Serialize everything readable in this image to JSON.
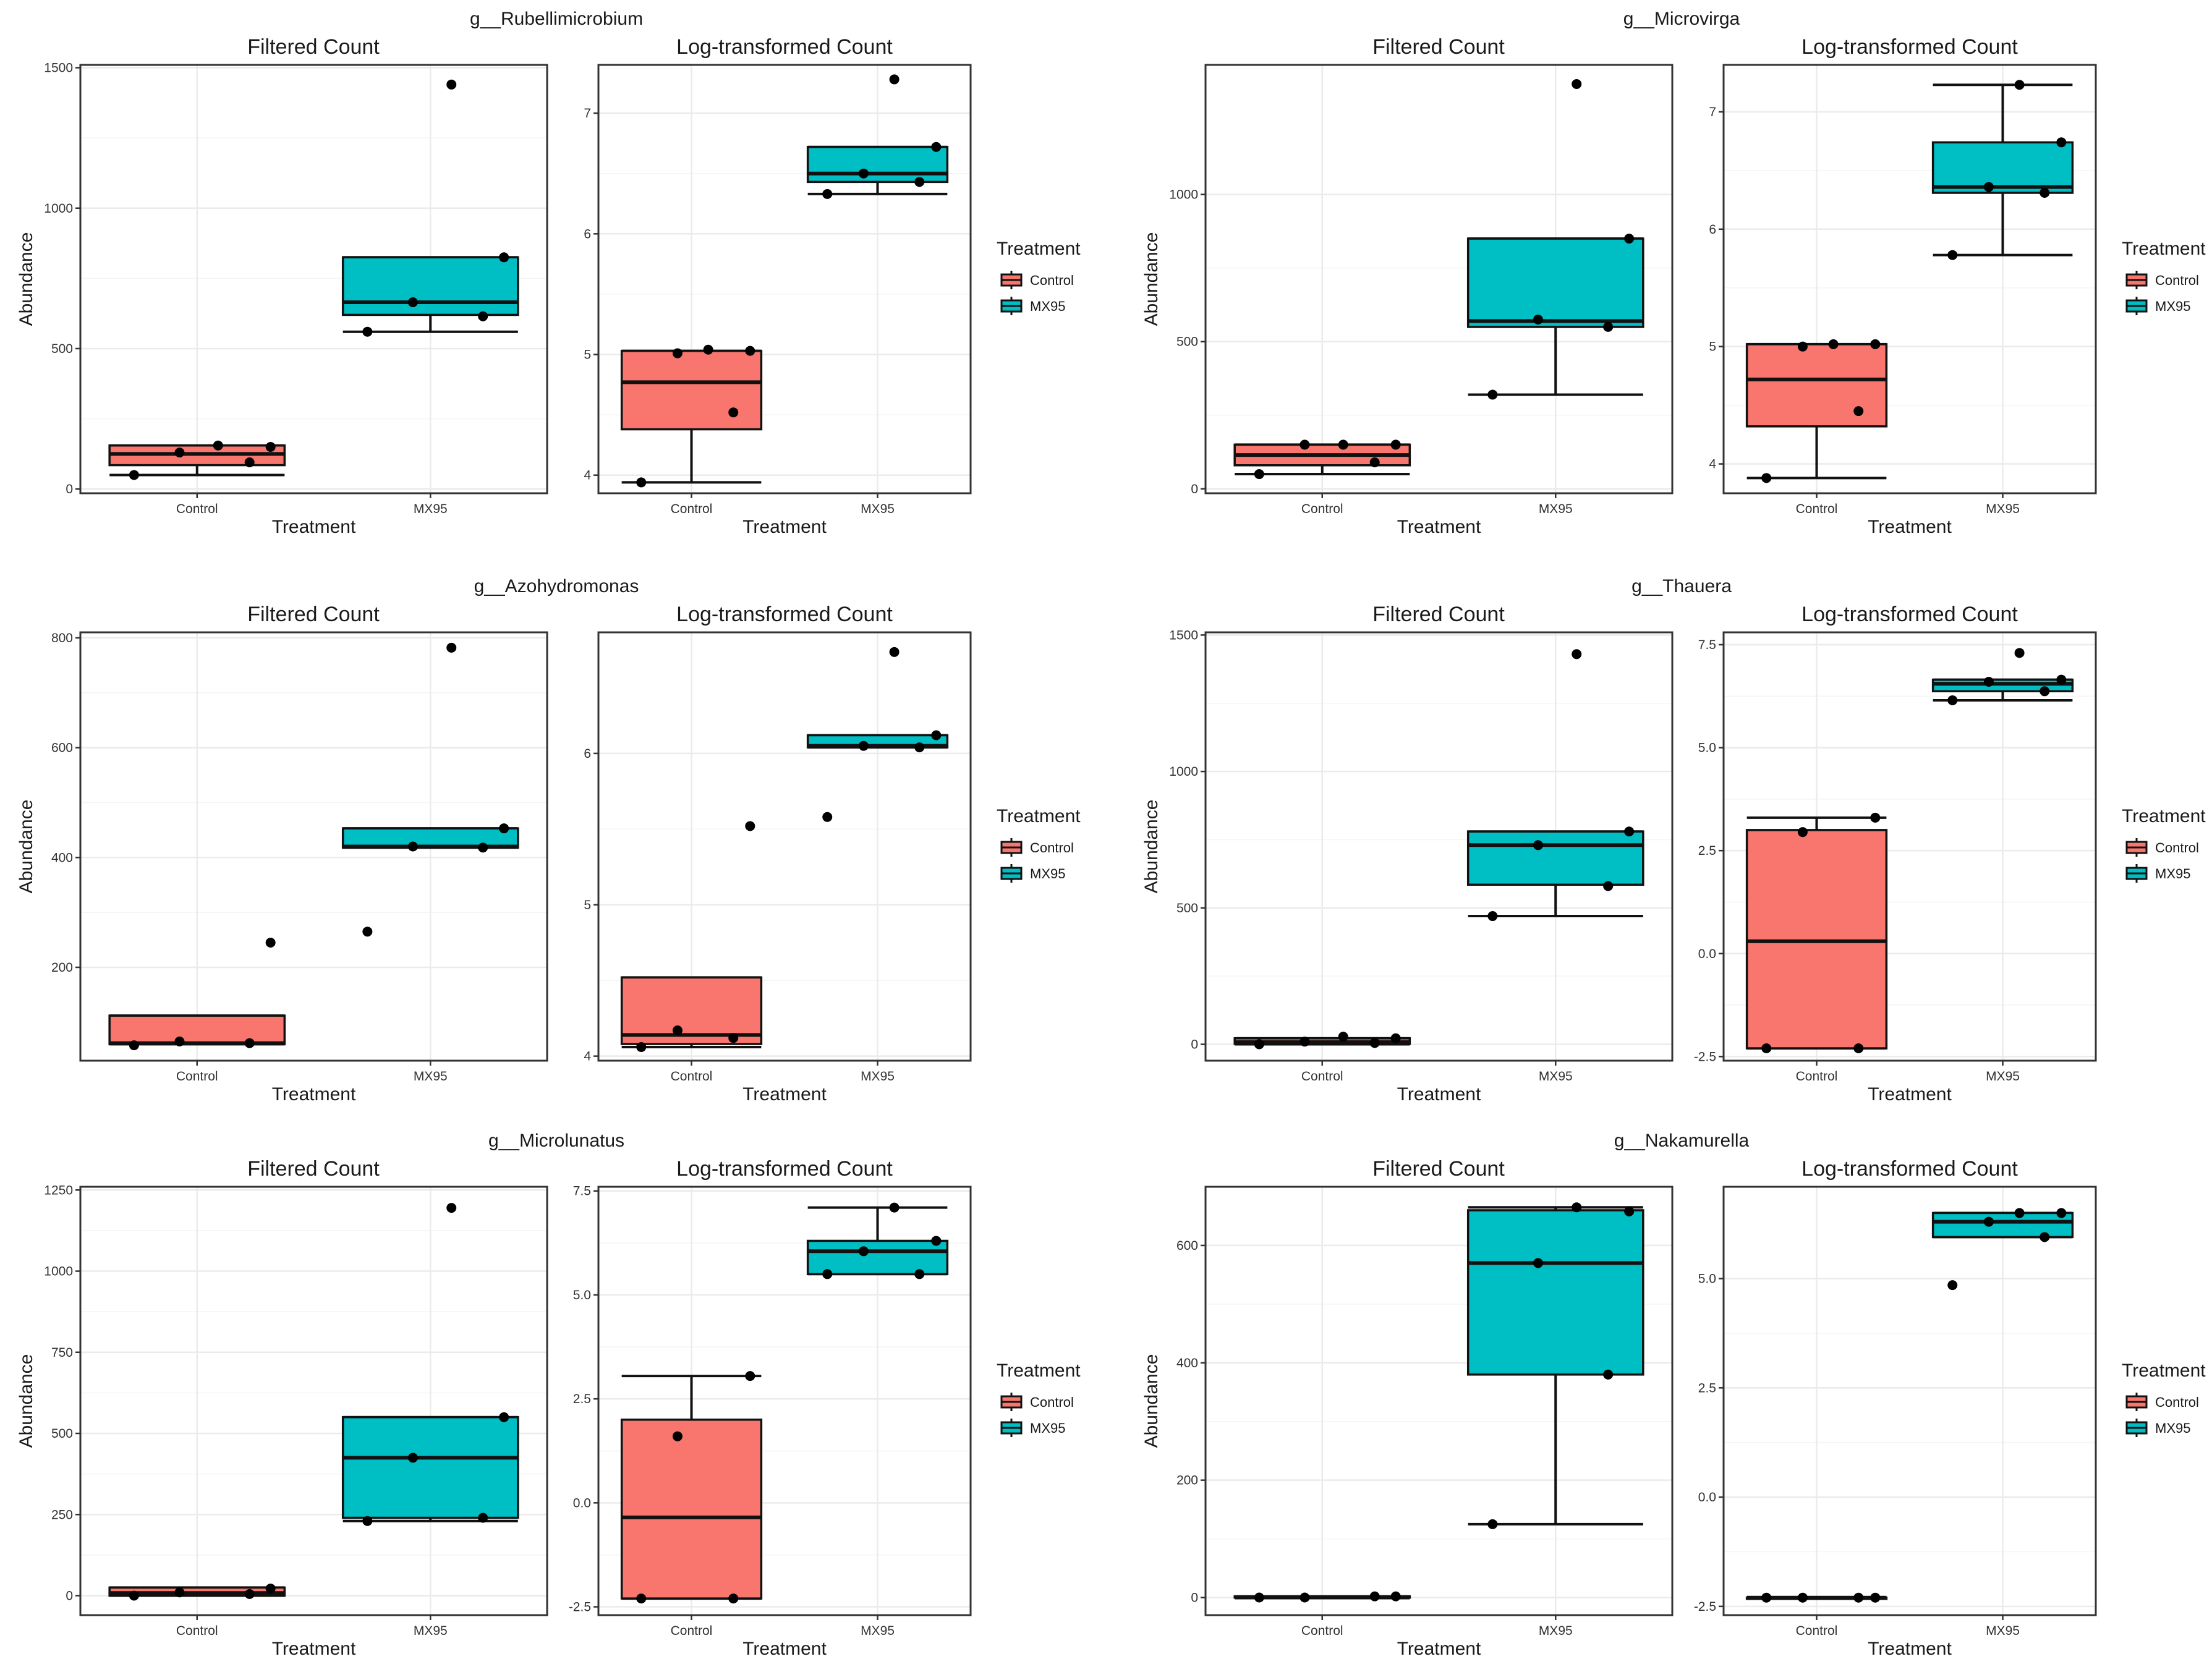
{
  "figure": {
    "background": "#ffffff"
  },
  "colors": {
    "Control": "#f8766d",
    "MX95": "#00bfc4",
    "grid": "#ebebeb",
    "frame": "#333333"
  },
  "icons": {
    "legend_key": "boxplot-legend-key-icon"
  },
  "chart_data": [
    {
      "genus": "g__Rubellimicrobium",
      "legend": {
        "title": "Treatment",
        "items": [
          "Control",
          "MX95"
        ],
        "position": "right"
      },
      "panels": [
        {
          "type": "box",
          "title": "Filtered Count",
          "xlabel": "Treatment",
          "ylabel": "Abundance",
          "categories": [
            "Control",
            "MX95"
          ],
          "ylim": [
            -15,
            1510
          ],
          "yticks": [
            0,
            500,
            1000,
            1500
          ],
          "yticklabels": [
            "0",
            "500",
            "1000",
            "1500"
          ],
          "grid": true,
          "boxes": [
            {
              "group": "Control",
              "q1": 85,
              "median": 125,
              "q3": 155,
              "whisker_low": 50,
              "whisker_high": 155,
              "points": [
                50,
                95,
                130,
                150,
                155
              ]
            },
            {
              "group": "MX95",
              "q1": 620,
              "median": 665,
              "q3": 825,
              "whisker_low": 560,
              "whisker_high": 825,
              "points": [
                560,
                615,
                665,
                825,
                1440
              ]
            }
          ]
        },
        {
          "type": "box",
          "title": "Log-transformed Count",
          "xlabel": "Treatment",
          "ylabel": "",
          "categories": [
            "Control",
            "MX95"
          ],
          "ylim": [
            3.85,
            7.4
          ],
          "yticks": [
            4,
            5,
            6,
            7
          ],
          "yticklabels": [
            "4",
            "5",
            "6",
            "7"
          ],
          "grid": true,
          "boxes": [
            {
              "group": "Control",
              "q1": 4.38,
              "median": 4.77,
              "q3": 5.03,
              "whisker_low": 3.94,
              "whisker_high": 5.03,
              "points": [
                3.94,
                4.52,
                5.01,
                5.03,
                5.04
              ]
            },
            {
              "group": "MX95",
              "q1": 6.43,
              "median": 6.5,
              "q3": 6.72,
              "whisker_low": 6.33,
              "whisker_high": 6.72,
              "points": [
                6.33,
                6.43,
                6.5,
                6.72,
                7.28
              ]
            }
          ]
        }
      ]
    },
    {
      "genus": "g__Microvirga",
      "legend": {
        "title": "Treatment",
        "items": [
          "Control",
          "MX95"
        ],
        "position": "right"
      },
      "panels": [
        {
          "type": "box",
          "title": "Filtered Count",
          "xlabel": "Treatment",
          "ylabel": "Abundance",
          "categories": [
            "Control",
            "MX95"
          ],
          "ylim": [
            -15,
            1440
          ],
          "yticks": [
            0,
            500,
            1000
          ],
          "yticklabels": [
            "0",
            "500",
            "1000"
          ],
          "grid": true,
          "boxes": [
            {
              "group": "Control",
              "q1": 80,
              "median": 115,
              "q3": 150,
              "whisker_low": 50,
              "whisker_high": 150,
              "points": [
                50,
                90,
                150,
                150,
                150
              ]
            },
            {
              "group": "MX95",
              "q1": 550,
              "median": 570,
              "q3": 850,
              "whisker_low": 320,
              "whisker_high": 850,
              "points": [
                320,
                550,
                575,
                850,
                1375
              ]
            }
          ]
        },
        {
          "type": "box",
          "title": "Log-transformed Count",
          "xlabel": "Treatment",
          "ylabel": "",
          "categories": [
            "Control",
            "MX95"
          ],
          "ylim": [
            3.75,
            7.4
          ],
          "yticks": [
            4,
            5,
            6,
            7
          ],
          "yticklabels": [
            "4",
            "5",
            "6",
            "7"
          ],
          "grid": true,
          "boxes": [
            {
              "group": "Control",
              "q1": 4.32,
              "median": 4.72,
              "q3": 5.02,
              "whisker_low": 3.88,
              "whisker_high": 5.02,
              "points": [
                3.88,
                4.45,
                5.0,
                5.02,
                5.02
              ]
            },
            {
              "group": "MX95",
              "q1": 6.31,
              "median": 6.36,
              "q3": 6.74,
              "whisker_low": 5.78,
              "whisker_high": 7.23,
              "points": [
                5.78,
                6.31,
                6.36,
                6.74,
                7.23
              ]
            }
          ]
        }
      ]
    },
    {
      "genus": "g__Azohydromonas",
      "legend": {
        "title": "Treatment",
        "items": [
          "Control",
          "MX95"
        ],
        "position": "right"
      },
      "panels": [
        {
          "type": "box",
          "title": "Filtered Count",
          "xlabel": "Treatment",
          "ylabel": "Abundance",
          "categories": [
            "Control",
            "MX95"
          ],
          "ylim": [
            30,
            810
          ],
          "yticks": [
            200,
            400,
            600,
            800
          ],
          "yticklabels": [
            "200",
            "400",
            "600",
            "800"
          ],
          "grid": true,
          "boxes": [
            {
              "group": "Control",
              "q1": 60,
              "median": 62,
              "q3": 112,
              "whisker_low": 60,
              "whisker_high": 112,
              "points": [
                58,
                62,
                65,
                245
              ]
            },
            {
              "group": "MX95",
              "q1": 418,
              "median": 420,
              "q3": 453,
              "whisker_low": 418,
              "whisker_high": 453,
              "points": [
                265,
                418,
                420,
                453,
                782
              ]
            }
          ]
        },
        {
          "type": "box",
          "title": "Log-transformed Count",
          "xlabel": "Treatment",
          "ylabel": "",
          "categories": [
            "Control",
            "MX95"
          ],
          "ylim": [
            3.97,
            6.8
          ],
          "yticks": [
            4,
            5,
            6
          ],
          "yticklabels": [
            "4",
            "5",
            "6"
          ],
          "grid": true,
          "boxes": [
            {
              "group": "Control",
              "q1": 4.08,
              "median": 4.14,
              "q3": 4.52,
              "whisker_low": 4.06,
              "whisker_high": 4.52,
              "points": [
                4.06,
                4.12,
                4.17,
                5.52
              ]
            },
            {
              "group": "MX95",
              "q1": 6.04,
              "median": 6.05,
              "q3": 6.12,
              "whisker_low": 6.04,
              "whisker_high": 6.12,
              "points": [
                5.58,
                6.04,
                6.05,
                6.12,
                6.67
              ]
            }
          ]
        }
      ]
    },
    {
      "genus": "g__Thauera",
      "legend": {
        "title": "Treatment",
        "items": [
          "Control",
          "MX95"
        ],
        "position": "right"
      },
      "panels": [
        {
          "type": "box",
          "title": "Filtered Count",
          "xlabel": "Treatment",
          "ylabel": "Abundance",
          "categories": [
            "Control",
            "MX95"
          ],
          "ylim": [
            -60,
            1510
          ],
          "yticks": [
            0,
            500,
            1000,
            1500
          ],
          "yticklabels": [
            "0",
            "500",
            "1000",
            "1500"
          ],
          "grid": true,
          "boxes": [
            {
              "group": "Control",
              "q1": 2,
              "median": 8,
              "q3": 22,
              "whisker_low": 0,
              "whisker_high": 22,
              "points": [
                0,
                5,
                10,
                22,
                28
              ]
            },
            {
              "group": "MX95",
              "q1": 585,
              "median": 730,
              "q3": 780,
              "whisker_low": 470,
              "whisker_high": 780,
              "points": [
                470,
                580,
                730,
                780,
                1430
              ]
            }
          ]
        },
        {
          "type": "box",
          "title": "Log-transformed Count",
          "xlabel": "Treatment",
          "ylabel": "",
          "categories": [
            "Control",
            "MX95"
          ],
          "ylim": [
            -2.6,
            7.8
          ],
          "yticks": [
            -2.5,
            0.0,
            2.5,
            5.0,
            7.5
          ],
          "yticklabels": [
            "-2.5",
            "0.0",
            "2.5",
            "5.0",
            "7.5"
          ],
          "grid": true,
          "boxes": [
            {
              "group": "Control",
              "q1": -2.3,
              "median": 0.3,
              "q3": 3.0,
              "whisker_low": -2.3,
              "whisker_high": 3.3,
              "points": [
                -2.3,
                -2.3,
                2.95,
                3.3
              ]
            },
            {
              "group": "MX95",
              "q1": 6.37,
              "median": 6.55,
              "q3": 6.65,
              "whisker_low": 6.15,
              "whisker_high": 6.65,
              "points": [
                6.15,
                6.37,
                6.6,
                6.65,
                7.3
              ]
            }
          ]
        }
      ]
    },
    {
      "genus": "g__Microlunatus",
      "legend": {
        "title": "Treatment",
        "items": [
          "Control",
          "MX95"
        ],
        "position": "right"
      },
      "panels": [
        {
          "type": "box",
          "title": "Filtered Count",
          "xlabel": "Treatment",
          "ylabel": "Abundance",
          "categories": [
            "Control",
            "MX95"
          ],
          "ylim": [
            -60,
            1260
          ],
          "yticks": [
            0,
            250,
            500,
            750,
            1000,
            1250
          ],
          "yticklabels": [
            "0",
            "250",
            "500",
            "750",
            "1000",
            "1250"
          ],
          "grid": true,
          "boxes": [
            {
              "group": "Control",
              "q1": 0,
              "median": 8,
              "q3": 25,
              "whisker_low": 0,
              "whisker_high": 25,
              "points": [
                0,
                5,
                10,
                22
              ]
            },
            {
              "group": "MX95",
              "q1": 240,
              "median": 425,
              "q3": 550,
              "whisker_low": 230,
              "whisker_high": 550,
              "points": [
                230,
                240,
                425,
                550,
                1195
              ]
            }
          ]
        },
        {
          "type": "box",
          "title": "Log-transformed Count",
          "xlabel": "Treatment",
          "ylabel": "",
          "categories": [
            "Control",
            "MX95"
          ],
          "ylim": [
            -2.7,
            7.6
          ],
          "yticks": [
            -2.5,
            0.0,
            2.5,
            5.0,
            7.5
          ],
          "yticklabels": [
            "-2.5",
            "0.0",
            "2.5",
            "5.0",
            "7.5"
          ],
          "grid": true,
          "boxes": [
            {
              "group": "Control",
              "q1": -2.3,
              "median": -0.35,
              "q3": 2.0,
              "whisker_low": -2.3,
              "whisker_high": 3.05,
              "points": [
                -2.3,
                -2.3,
                1.6,
                3.05
              ]
            },
            {
              "group": "MX95",
              "q1": 5.5,
              "median": 6.05,
              "q3": 6.3,
              "whisker_low": 5.5,
              "whisker_high": 7.1,
              "points": [
                5.5,
                5.5,
                6.05,
                6.3,
                7.1
              ]
            }
          ]
        }
      ]
    },
    {
      "genus": "g__Nakamurella",
      "legend": {
        "title": "Treatment",
        "items": [
          "Control",
          "MX95"
        ],
        "position": "right"
      },
      "panels": [
        {
          "type": "box",
          "title": "Filtered Count",
          "xlabel": "Treatment",
          "ylabel": "Abundance",
          "categories": [
            "Control",
            "MX95"
          ],
          "ylim": [
            -30,
            700
          ],
          "yticks": [
            0,
            200,
            400,
            600
          ],
          "yticklabels": [
            "0",
            "200",
            "400",
            "600"
          ],
          "grid": true,
          "boxes": [
            {
              "group": "Control",
              "q1": 0,
              "median": 0,
              "q3": 2,
              "whisker_low": 0,
              "whisker_high": 2,
              "points": [
                0,
                2,
                0,
                2
              ]
            },
            {
              "group": "MX95",
              "q1": 380,
              "median": 570,
              "q3": 660,
              "whisker_low": 125,
              "whisker_high": 665,
              "points": [
                125,
                380,
                570,
                658,
                665
              ]
            }
          ]
        },
        {
          "type": "box",
          "title": "Log-transformed Count",
          "xlabel": "Treatment",
          "ylabel": "",
          "categories": [
            "Control",
            "MX95"
          ],
          "ylim": [
            -2.7,
            7.1
          ],
          "yticks": [
            -2.5,
            0.0,
            2.5,
            5.0
          ],
          "yticklabels": [
            "-2.5",
            "0.0",
            "2.5",
            "5.0"
          ],
          "grid": true,
          "boxes": [
            {
              "group": "Control",
              "q1": -2.3,
              "median": -2.3,
              "q3": -2.3,
              "whisker_low": -2.3,
              "whisker_high": -2.3,
              "points": [
                -2.3,
                -2.3,
                -2.3,
                -2.3
              ]
            },
            {
              "group": "MX95",
              "q1": 5.95,
              "median": 6.3,
              "q3": 6.5,
              "whisker_low": 5.95,
              "whisker_high": 6.5,
              "points": [
                4.85,
                5.95,
                6.3,
                6.5,
                6.5
              ]
            }
          ]
        }
      ]
    }
  ]
}
